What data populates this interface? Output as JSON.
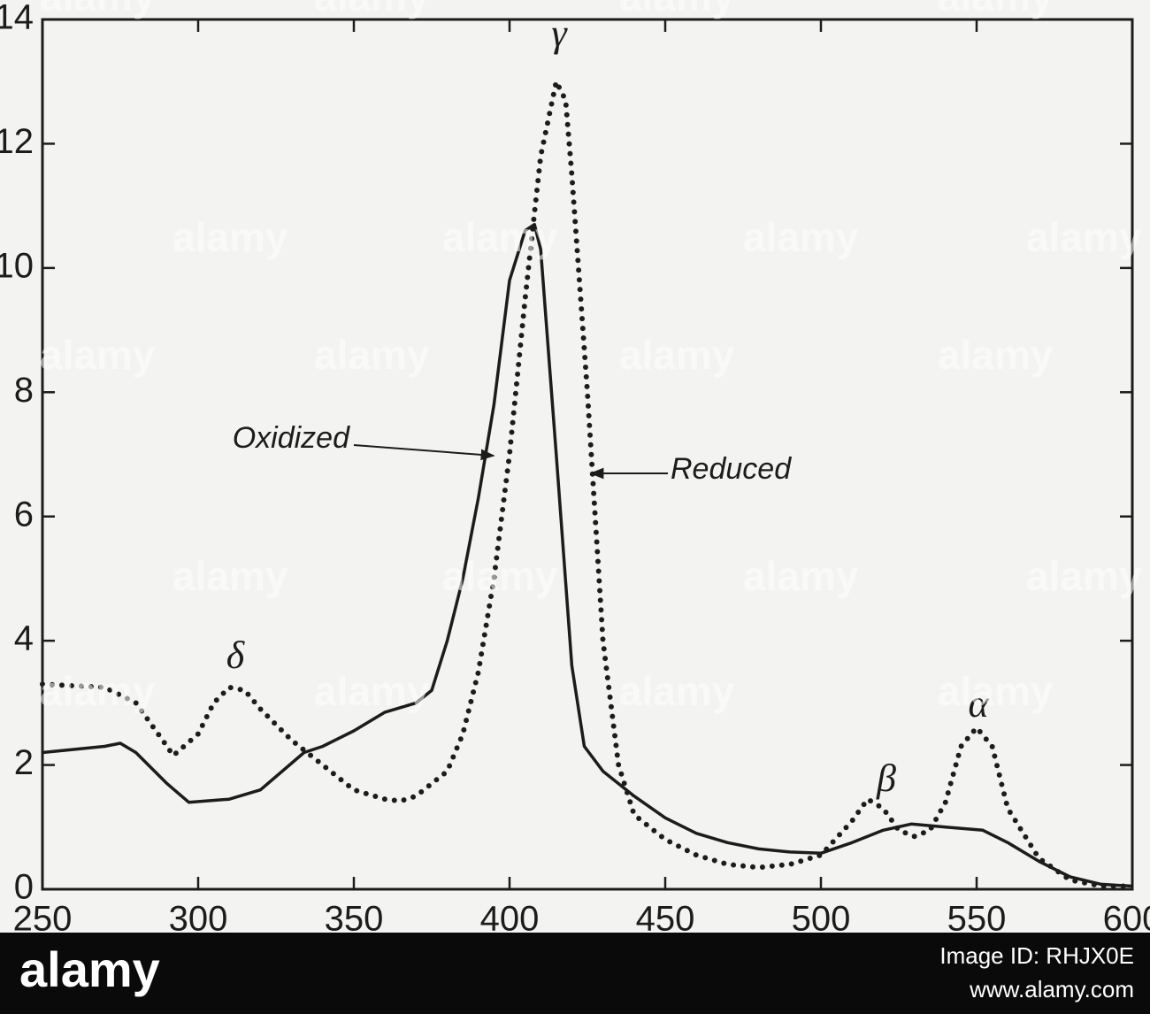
{
  "chart_data": {
    "type": "line",
    "xlim": [
      250,
      600
    ],
    "ylim": [
      0,
      14
    ],
    "xticks": [
      250,
      300,
      350,
      400,
      450,
      500,
      550,
      600
    ],
    "yticks": [
      0,
      2,
      4,
      6,
      8,
      10,
      12,
      14
    ],
    "color": "#1c1c1c",
    "series": [
      {
        "name": "Oxidized",
        "style": "solid",
        "x": [
          250,
          260,
          270,
          275,
          280,
          290,
          297,
          310,
          320,
          334,
          340,
          350,
          360,
          370,
          375,
          380,
          385,
          390,
          395,
          400,
          405,
          408,
          410,
          415,
          420,
          424,
          430,
          440,
          450,
          460,
          470,
          480,
          490,
          500,
          510,
          520,
          529,
          540,
          552,
          560,
          570,
          580,
          590,
          600
        ],
        "values": [
          2.2,
          2.25,
          2.3,
          2.35,
          2.2,
          1.7,
          1.4,
          1.45,
          1.6,
          2.2,
          2.3,
          2.55,
          2.85,
          3.0,
          3.2,
          4.0,
          5.0,
          6.3,
          7.8,
          9.8,
          10.6,
          10.7,
          10.3,
          7.0,
          3.6,
          2.3,
          1.9,
          1.5,
          1.15,
          0.9,
          0.75,
          0.65,
          0.6,
          0.58,
          0.75,
          0.95,
          1.05,
          1.0,
          0.95,
          0.75,
          0.45,
          0.2,
          0.08,
          0.05
        ]
      },
      {
        "name": "Reduced",
        "style": "dotted",
        "x": [
          250,
          270,
          280,
          290,
          292,
          300,
          305,
          310,
          315,
          320,
          330,
          340,
          350,
          360,
          365,
          370,
          380,
          385,
          390,
          395,
          400,
          405,
          410,
          415,
          418,
          420,
          425,
          430,
          435,
          440,
          450,
          460,
          470,
          480,
          490,
          500,
          510,
          515,
          520,
          525,
          530,
          535,
          540,
          545,
          550,
          555,
          560,
          570,
          580,
          590,
          600
        ],
        "values": [
          3.3,
          3.25,
          3.0,
          2.3,
          2.15,
          2.5,
          3.0,
          3.25,
          3.2,
          2.9,
          2.4,
          2.0,
          1.6,
          1.45,
          1.42,
          1.5,
          1.9,
          2.5,
          3.5,
          5.0,
          7.0,
          9.5,
          11.8,
          13.0,
          12.7,
          11.5,
          8.0,
          4.0,
          2.0,
          1.2,
          0.8,
          0.55,
          0.4,
          0.35,
          0.4,
          0.55,
          1.1,
          1.45,
          1.3,
          0.95,
          0.85,
          0.95,
          1.4,
          2.3,
          2.6,
          2.3,
          1.3,
          0.5,
          0.15,
          0.05,
          0.05
        ]
      }
    ],
    "annotations": [
      "γ",
      "δ",
      "β",
      "α"
    ]
  },
  "footer": {
    "logo": "alamy",
    "image_id": "Image ID: RHJX0E",
    "url": "www.alamy.com"
  },
  "watermark": "alamy"
}
